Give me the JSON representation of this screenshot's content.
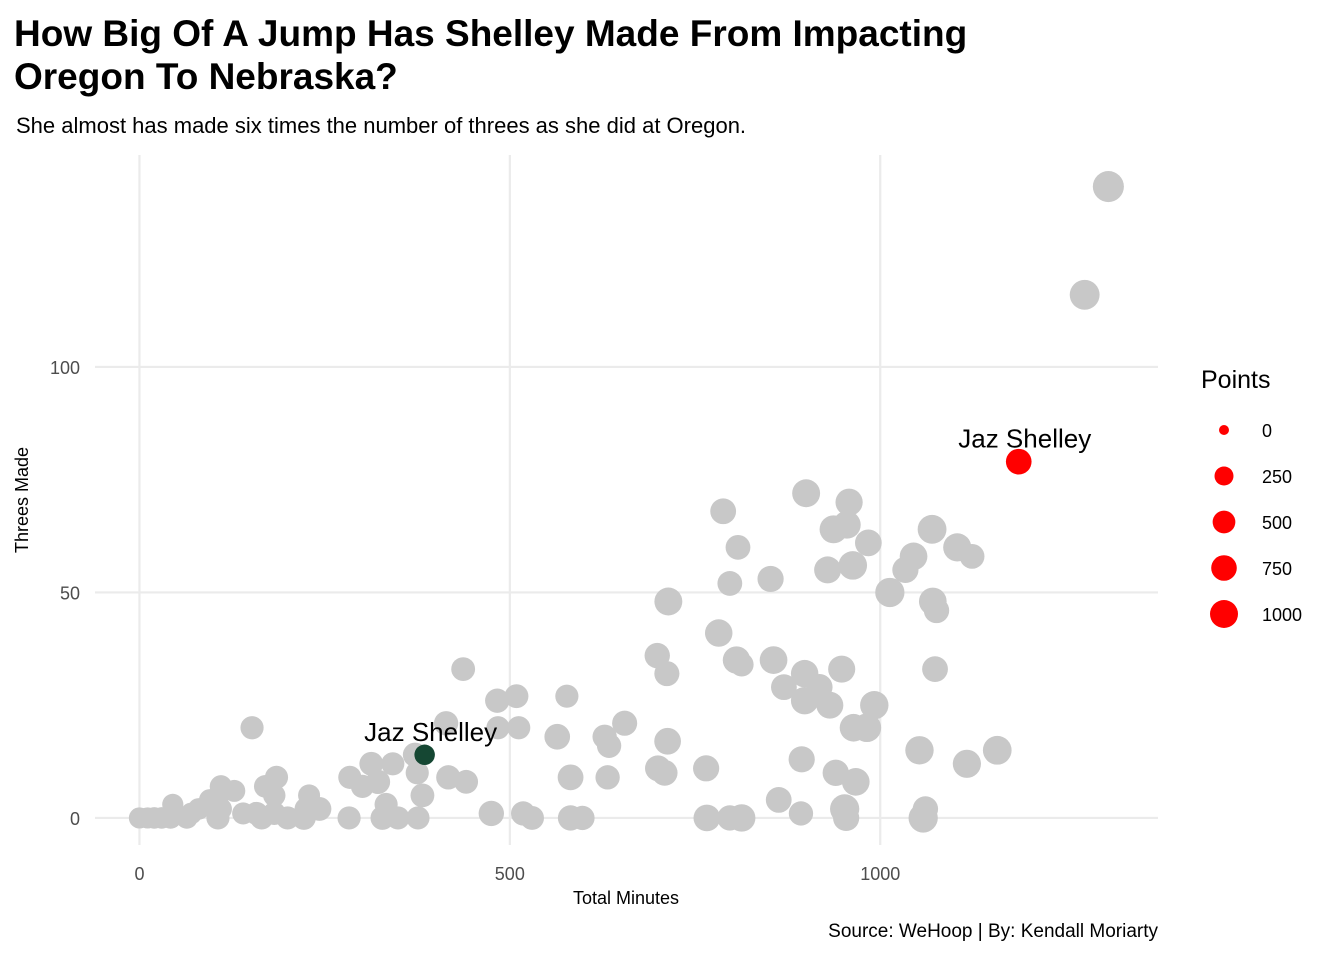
{
  "title": "How Big Of A Jump Has Shelley Made From Impacting Oregon To Nebraska?",
  "subtitle": "She almost has made six times the number of threes as she did at Oregon.",
  "caption": "Source: WeHoop | By: Kendall Moriarty",
  "colors": {
    "other": "#c8c8c8",
    "oregon": "#154733",
    "nebraska": "#ff0000",
    "grid": "#ebebeb"
  },
  "chart_data": {
    "type": "scatter",
    "title": "How Big Of A Jump Has Shelley Made From Impacting Oregon To Nebraska?",
    "subtitle": "She almost has made six times the number of threes as she did at Oregon.",
    "xlabel": "Total Minutes",
    "ylabel": "Threes Made",
    "xlim": [
      -60,
      1375
    ],
    "ylim": [
      -6,
      147
    ],
    "xticks": [
      0,
      500,
      1000
    ],
    "yticks": [
      0,
      50,
      100
    ],
    "grid": true,
    "legend": {
      "title": "Points",
      "position": "right",
      "entries": [
        {
          "label": "0",
          "value": 0
        },
        {
          "label": "250",
          "value": 250
        },
        {
          "label": "500",
          "value": 500
        },
        {
          "label": "750",
          "value": 750
        },
        {
          "label": "1000",
          "value": 1000
        }
      ]
    },
    "annotations": [
      {
        "text": "Jaz Shelley",
        "x": 385,
        "y": 14
      },
      {
        "text": "Jaz Shelley",
        "x": 1187,
        "y": 79
      }
    ],
    "highlights": [
      {
        "x": 385,
        "y": 14,
        "points": 130,
        "color": "#154733"
      },
      {
        "x": 1187,
        "y": 79,
        "points": 420,
        "color": "#ff0000"
      }
    ],
    "points": [
      [
        1308,
        140,
        900
      ],
      [
        1276,
        116,
        780
      ],
      [
        900,
        72,
        600
      ],
      [
        958,
        70,
        540
      ],
      [
        788,
        68,
        430
      ],
      [
        1070,
        64,
        680
      ],
      [
        937,
        64,
        600
      ],
      [
        955,
        65,
        580
      ],
      [
        1104,
        60,
        620
      ],
      [
        1124,
        58,
        360
      ],
      [
        984,
        61,
        500
      ],
      [
        808,
        60,
        360
      ],
      [
        1045,
        58,
        580
      ],
      [
        1034,
        55,
        460
      ],
      [
        929,
        55,
        520
      ],
      [
        963,
        56,
        650
      ],
      [
        852,
        53,
        460
      ],
      [
        797,
        52,
        360
      ],
      [
        1013,
        50,
        720
      ],
      [
        714,
        48,
        600
      ],
      [
        1071,
        48,
        580
      ],
      [
        1076,
        46,
        400
      ],
      [
        782,
        41,
        560
      ],
      [
        699,
        36,
        400
      ],
      [
        1074,
        33,
        430
      ],
      [
        948,
        33,
        530
      ],
      [
        437,
        33,
        300
      ],
      [
        806,
        35,
        560
      ],
      [
        856,
        35,
        580
      ],
      [
        898,
        32,
        560
      ],
      [
        712,
        32,
        380
      ],
      [
        918,
        29,
        460
      ],
      [
        870,
        29,
        430
      ],
      [
        813,
        34,
        300
      ],
      [
        898,
        26,
        560
      ],
      [
        932,
        25,
        520
      ],
      [
        992,
        25,
        640
      ],
      [
        509,
        27,
        300
      ],
      [
        577,
        27,
        260
      ],
      [
        483,
        26,
        330
      ],
      [
        655,
        21,
        380
      ],
      [
        414,
        21,
        330
      ],
      [
        964,
        20,
        580
      ],
      [
        982,
        20,
        660
      ],
      [
        512,
        20,
        260
      ],
      [
        484,
        20,
        260
      ],
      [
        564,
        18,
        420
      ],
      [
        628,
        18,
        330
      ],
      [
        634,
        16,
        330
      ],
      [
        713,
        17,
        500
      ],
      [
        1053,
        15,
        640
      ],
      [
        1158,
        15,
        670
      ],
      [
        894,
        13,
        460
      ],
      [
        940,
        10,
        470
      ],
      [
        1117,
        12,
        620
      ],
      [
        765,
        11,
        460
      ],
      [
        700,
        11,
        440
      ],
      [
        709,
        10,
        430
      ],
      [
        582,
        9,
        430
      ],
      [
        632,
        9,
        330
      ],
      [
        417,
        9,
        330
      ],
      [
        441,
        8,
        300
      ],
      [
        967,
        8,
        580
      ],
      [
        372,
        14,
        330
      ],
      [
        313,
        12,
        300
      ],
      [
        342,
        12,
        260
      ],
      [
        322,
        8,
        330
      ],
      [
        284,
        9,
        260
      ],
      [
        301,
        7,
        260
      ],
      [
        375,
        10,
        260
      ],
      [
        382,
        5,
        300
      ],
      [
        333,
        3,
        260
      ],
      [
        185,
        9,
        260
      ],
      [
        170,
        7,
        240
      ],
      [
        182,
        5,
        220
      ],
      [
        152,
        20,
        260
      ],
      [
        110,
        7,
        220
      ],
      [
        128,
        6,
        200
      ],
      [
        95,
        4,
        180
      ],
      [
        107,
        5,
        180
      ],
      [
        229,
        5,
        200
      ],
      [
        225,
        2,
        260
      ],
      [
        243,
        2,
        300
      ],
      [
        222,
        0,
        300
      ],
      [
        200,
        0,
        260
      ],
      [
        182,
        1,
        260
      ],
      [
        165,
        0,
        260
      ],
      [
        158,
        1,
        260
      ],
      [
        140,
        1,
        200
      ],
      [
        110,
        2,
        200
      ],
      [
        106,
        0,
        260
      ],
      [
        80,
        2,
        180
      ],
      [
        70,
        1,
        180
      ],
      [
        64,
        0,
        180
      ],
      [
        45,
        3,
        160
      ],
      [
        42,
        0,
        180
      ],
      [
        30,
        0,
        180
      ],
      [
        20,
        0,
        180
      ],
      [
        11,
        0,
        160
      ],
      [
        0,
        0,
        160
      ],
      [
        283,
        0,
        260
      ],
      [
        328,
        0,
        300
      ],
      [
        349,
        0,
        260
      ],
      [
        376,
        0,
        260
      ],
      [
        475,
        1,
        400
      ],
      [
        518,
        1,
        330
      ],
      [
        530,
        0,
        300
      ],
      [
        582,
        0,
        400
      ],
      [
        598,
        0,
        330
      ],
      [
        766,
        0,
        500
      ],
      [
        797,
        0,
        400
      ],
      [
        813,
        0,
        560
      ],
      [
        863,
        4,
        430
      ],
      [
        893,
        1,
        330
      ],
      [
        952,
        2,
        720
      ],
      [
        954,
        0,
        460
      ],
      [
        1058,
        0,
        720
      ],
      [
        1061,
        2,
        400
      ]
    ]
  }
}
